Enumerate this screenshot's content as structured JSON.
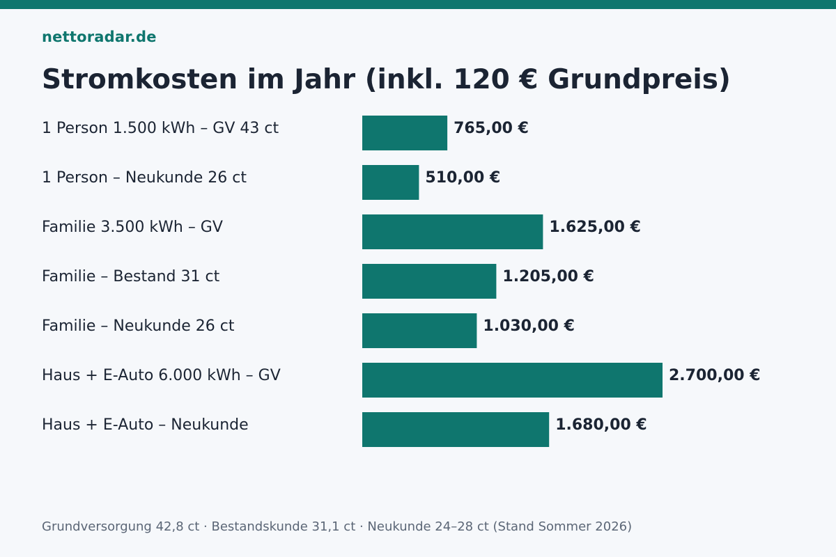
{
  "brand": "nettoradar.de",
  "colors": {
    "accent": "#0f766e",
    "background": "#f6f8fb",
    "text": "#1b2433",
    "muted": "#5b6676"
  },
  "chart_data": {
    "type": "bar",
    "orientation": "horizontal",
    "title": "Stromkosten im Jahr (inkl. 120 € Grundpreis)",
    "categories": [
      "1 Person 1.500 kWh – GV 43 ct",
      "1 Person – Neukunde 26 ct",
      "Familie 3.500 kWh – GV",
      "Familie – Bestand 31 ct",
      "Familie – Neukunde 26 ct",
      "Haus + E-Auto 6.000 kWh – GV",
      "Haus + E-Auto – Neukunde"
    ],
    "values": [
      765,
      510,
      1625,
      1205,
      1030,
      2700,
      1680
    ],
    "value_labels": [
      "765,00 €",
      "510,00 €",
      "1.625,00 €",
      "1.205,00 €",
      "1.030,00 €",
      "2.700,00 €",
      "1.680,00 €"
    ],
    "xlim": [
      0,
      2700
    ],
    "grid": false,
    "legend": "none"
  },
  "footnote": "Grundversorgung 42,8 ct · Bestandskunde 31,1 ct · Neukunde 24–28 ct (Stand Sommer 2026)"
}
